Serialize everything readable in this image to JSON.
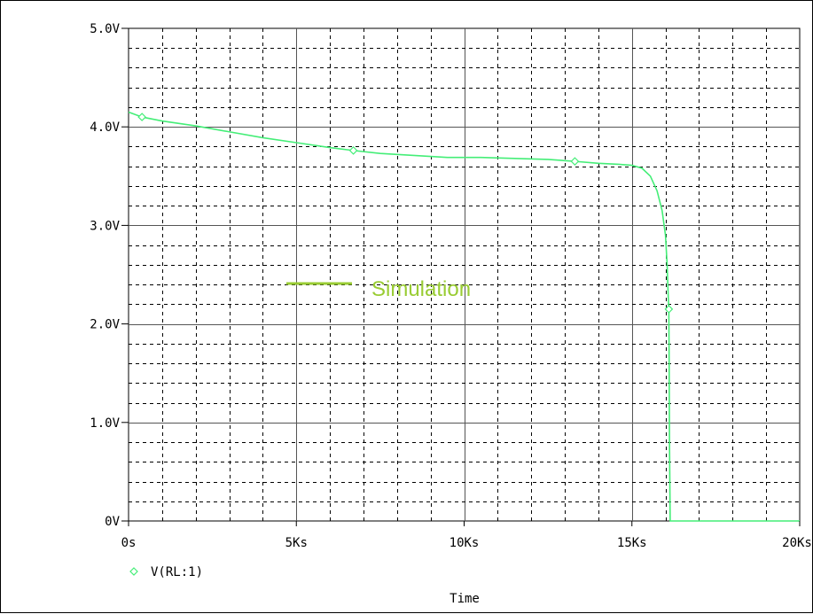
{
  "chart_data": {
    "type": "line",
    "title": "",
    "xlabel": "Time",
    "ylabel": "",
    "xlim": [
      0,
      20000
    ],
    "ylim": [
      0,
      5
    ],
    "x_ticks": [
      {
        "value": 0,
        "label": "0s"
      },
      {
        "value": 5000,
        "label": "5Ks"
      },
      {
        "value": 10000,
        "label": "10Ks"
      },
      {
        "value": 15000,
        "label": "15Ks"
      },
      {
        "value": 20000,
        "label": "20Ks"
      }
    ],
    "y_ticks": [
      {
        "value": 0,
        "label": "0V"
      },
      {
        "value": 1,
        "label": "1.0V"
      },
      {
        "value": 2,
        "label": "2.0V"
      },
      {
        "value": 3,
        "label": "3.0V"
      },
      {
        "value": 4,
        "label": "4.0V"
      },
      {
        "value": 5,
        "label": "5.0V"
      }
    ],
    "grid": true,
    "series": [
      {
        "name": "V(RL:1)",
        "color": "#44ee77",
        "marker": "diamond",
        "x": [
          0,
          400,
          1000,
          2000,
          3000,
          4000,
          5000,
          6000,
          6700,
          7500,
          8500,
          9500,
          10500,
          11500,
          12500,
          13300,
          14000,
          14600,
          15000,
          15300,
          15550,
          15750,
          15900,
          16000,
          16050,
          16080,
          16100,
          16110,
          16120,
          16140,
          16200,
          17000,
          18000,
          19000,
          20000
        ],
        "values": [
          4.15,
          4.1,
          4.06,
          4.01,
          3.95,
          3.89,
          3.84,
          3.79,
          3.76,
          3.73,
          3.71,
          3.69,
          3.69,
          3.68,
          3.67,
          3.65,
          3.63,
          3.62,
          3.61,
          3.58,
          3.5,
          3.35,
          3.15,
          2.9,
          2.6,
          2.3,
          2.15,
          1.6,
          0.8,
          0,
          0,
          0,
          0,
          0,
          0
        ],
        "marker_x": [
          400,
          6700,
          13300,
          16100
        ],
        "marker_y": [
          4.1,
          3.76,
          3.65,
          2.15
        ]
      }
    ],
    "inline_legend": {
      "label": "Simulation",
      "color": "#99cc33"
    },
    "legend": {
      "placement": "bottom-left"
    }
  }
}
